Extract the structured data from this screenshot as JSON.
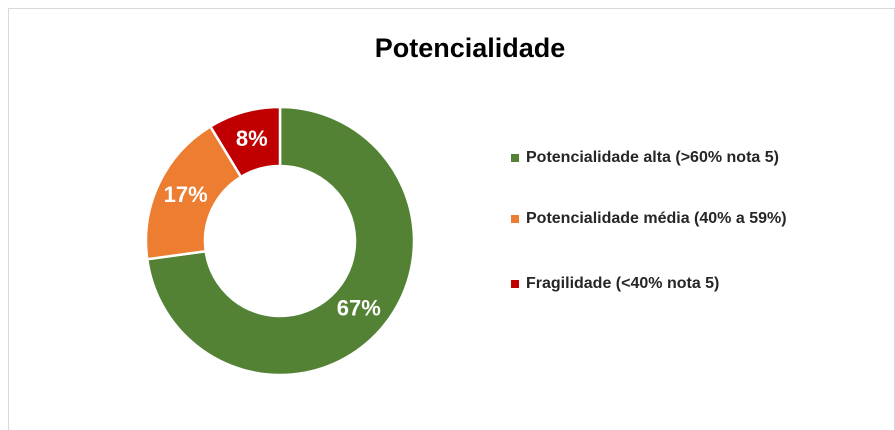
{
  "chart_data": {
    "type": "donut",
    "title": "Potencialidade",
    "categories": [
      "Potencialidade alta (>60% nota 5)",
      "Potencialidade média (40% a 59%)",
      "Fragilidade (<40% nota 5)"
    ],
    "values": [
      67,
      17,
      8
    ],
    "value_labels": [
      "67%",
      "17%",
      "8%"
    ],
    "colors": [
      "#548235",
      "#ed7d31",
      "#c00000"
    ],
    "legend": "right"
  }
}
